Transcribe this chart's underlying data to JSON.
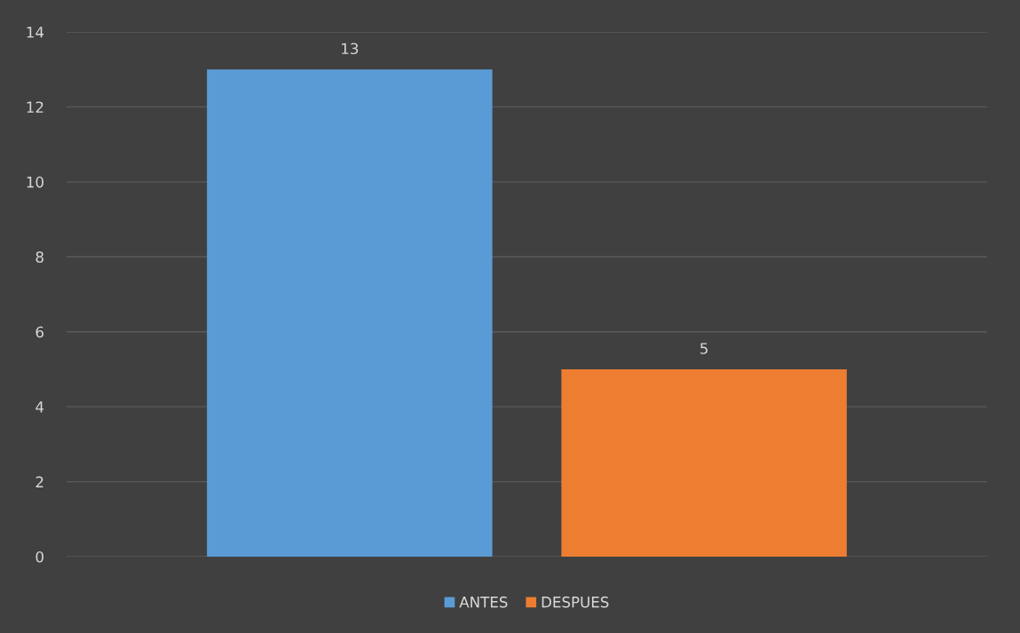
{
  "chart_data": {
    "type": "bar",
    "categories": [
      null
    ],
    "series": [
      {
        "name": "ANTES",
        "color": "#5b9bd5",
        "values": [
          13
        ]
      },
      {
        "name": "DESPUES",
        "color": "#ed7d31",
        "values": [
          5
        ]
      }
    ],
    "ylim": [
      0,
      14
    ],
    "yticks": [
      0,
      2,
      4,
      6,
      8,
      10,
      12,
      14
    ],
    "grid": "y",
    "legend": "bottom",
    "data_labels": true
  }
}
